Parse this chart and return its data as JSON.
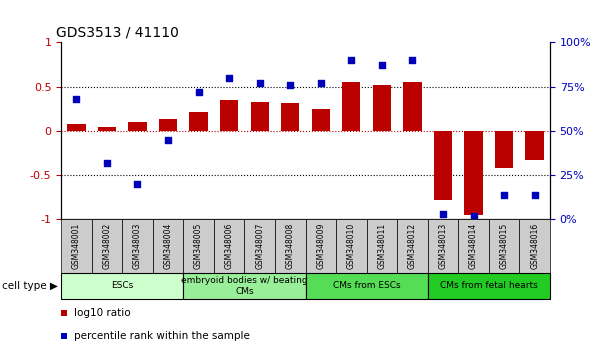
{
  "title": "GDS3513 / 41110",
  "samples": [
    "GSM348001",
    "GSM348002",
    "GSM348003",
    "GSM348004",
    "GSM348005",
    "GSM348006",
    "GSM348007",
    "GSM348008",
    "GSM348009",
    "GSM348010",
    "GSM348011",
    "GSM348012",
    "GSM348013",
    "GSM348014",
    "GSM348015",
    "GSM348016"
  ],
  "log10_ratio": [
    0.08,
    0.04,
    0.1,
    0.13,
    0.22,
    0.35,
    0.33,
    0.32,
    0.25,
    0.55,
    0.52,
    0.55,
    -0.78,
    -0.95,
    -0.42,
    -0.33
  ],
  "percentile_rank": [
    68,
    32,
    20,
    45,
    72,
    80,
    77,
    76,
    77,
    90,
    87,
    90,
    3,
    2,
    14,
    14
  ],
  "cell_types": [
    {
      "label": "ESCs",
      "start": 0,
      "end": 4,
      "color": "#ccffcc"
    },
    {
      "label": "embryoid bodies w/ beating\nCMs",
      "start": 4,
      "end": 8,
      "color": "#99ee99"
    },
    {
      "label": "CMs from ESCs",
      "start": 8,
      "end": 12,
      "color": "#55dd55"
    },
    {
      "label": "CMs from fetal hearts",
      "start": 12,
      "end": 16,
      "color": "#22cc22"
    }
  ],
  "bar_color": "#bb0000",
  "dot_color": "#0000bb",
  "ylim_left": [
    -1,
    1
  ],
  "ylim_right": [
    0,
    100
  ],
  "yticks_left": [
    -1,
    -0.5,
    0,
    0.5,
    1
  ],
  "ytick_labels_left": [
    "-1",
    "-0.5",
    "0",
    "0.5",
    "1"
  ],
  "yticks_right": [
    0,
    25,
    50,
    75,
    100
  ],
  "ytick_labels_right": [
    "0%",
    "25%",
    "50%",
    "75%",
    "100%"
  ],
  "background_color": "#ffffff",
  "cell_type_label": "cell type",
  "legend_items": [
    {
      "color": "#bb0000",
      "label": "log10 ratio"
    },
    {
      "color": "#0000bb",
      "label": "percentile rank within the sample"
    }
  ]
}
